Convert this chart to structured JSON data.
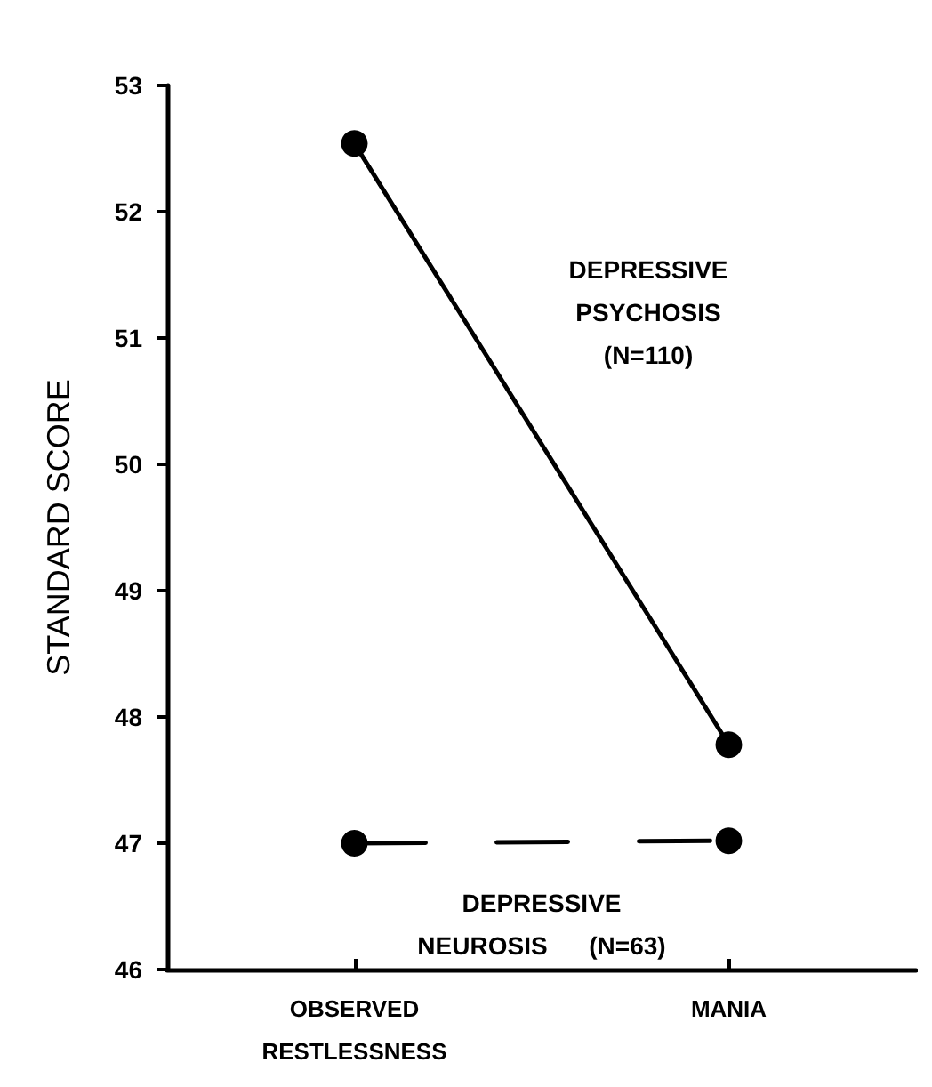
{
  "chart_data": {
    "type": "line",
    "ylabel": "STANDARD SCORE",
    "categories": [
      "OBSERVED\nRESTLESSNESS",
      "MANIA"
    ],
    "series": [
      {
        "name": "DEPRESSIVE\nPSYCHOSIS\n(N=110)",
        "color": "#000000",
        "values": [
          52.54,
          47.78
        ],
        "line_style": "solid"
      },
      {
        "name": "DEPRESSIVE\nNEUROSIS      (N=63)",
        "color": "#000000",
        "values": [
          47.0,
          47.02
        ],
        "line_style": "dashed"
      }
    ],
    "ylim": [
      46,
      53
    ],
    "yticks": [
      46,
      47,
      48,
      49,
      50,
      51,
      52,
      53
    ],
    "marker": "circle",
    "grid": false
  }
}
